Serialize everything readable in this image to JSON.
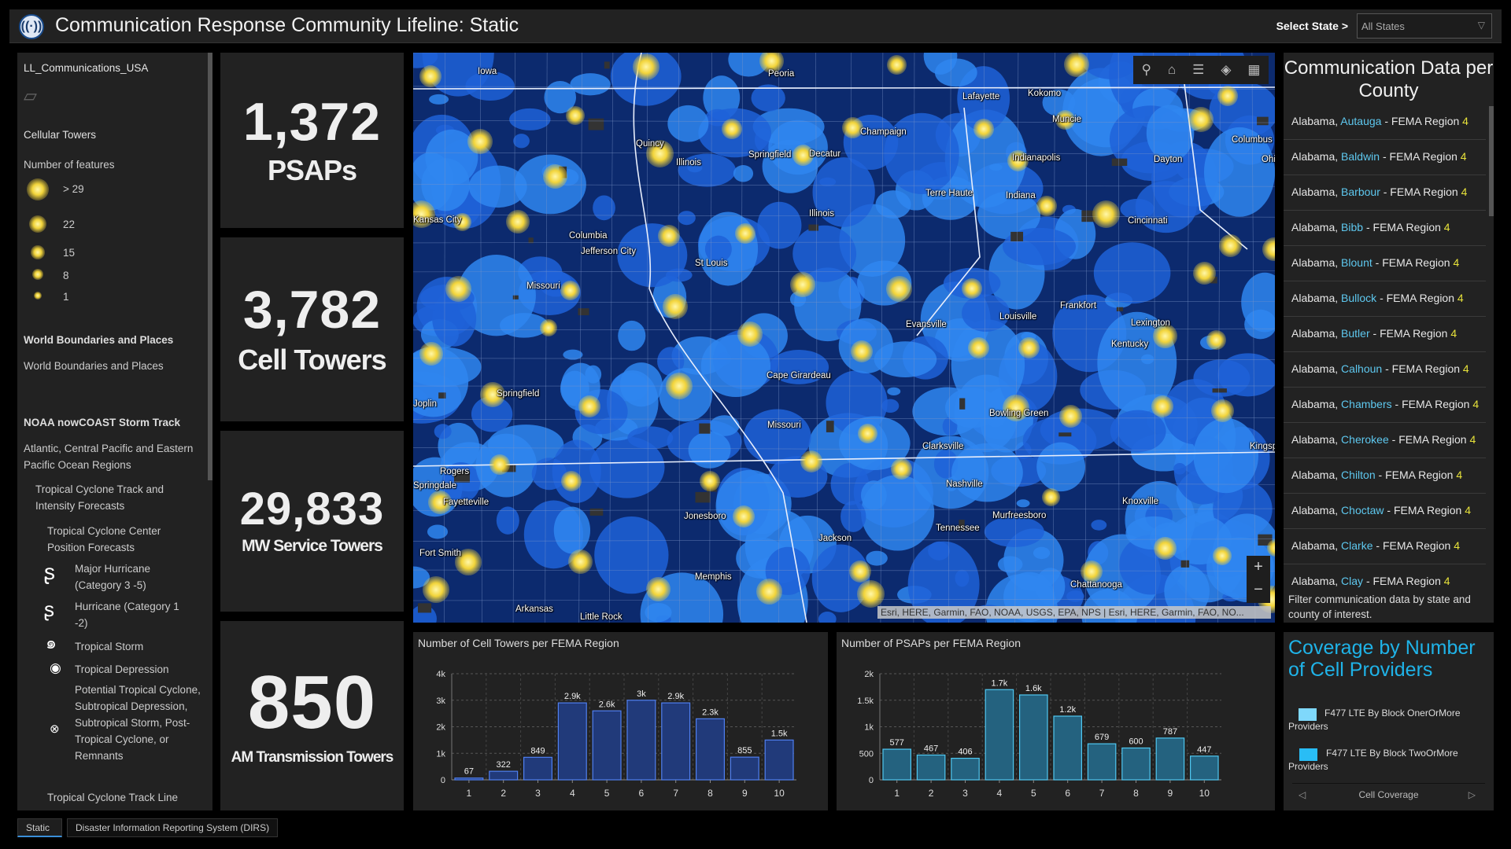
{
  "header": {
    "title": "Communication Response Community Lifeline: Static",
    "logo_icon": "radio-tower-icon",
    "select_label": "Select State >",
    "select_value": "All States"
  },
  "legend": {
    "layer": "LL_Communications_USA",
    "cell_title": "Cellular Towers",
    "cell_sub": "Number of features",
    "sizes": [
      "> 29",
      "22",
      "15",
      "8",
      "1"
    ],
    "world_title": "World Boundaries and Places",
    "world_sub": "World Boundaries and Places",
    "noaa_title": "NOAA nowCOAST Storm Track",
    "noaa_sub": "Atlantic, Central Pacific and Eastern Pacific Ocean Regions",
    "track_intensity": "Tropical Cyclone Track and Intensity Forecasts",
    "center_pos": "Tropical Cyclone Center Position Forecasts",
    "storm_items": [
      "Major Hurricane (Category 3 -5)",
      "Hurricane (Category 1 -2)",
      "Tropical Storm",
      "Tropical Depression",
      "Potential Tropical Cyclone, Subtropical Depression, Subtropical Storm, Post-Tropical Cyclone, or Remnants"
    ],
    "track_line": "Tropical Cyclone Track Line"
  },
  "kpis": [
    {
      "value": "1,372",
      "label": "PSAPs"
    },
    {
      "value": "3,782",
      "label": "Cell Towers"
    },
    {
      "value": "29,833",
      "label": "MW Service Towers"
    },
    {
      "value": "850",
      "label": "AM Transmission Towers"
    }
  ],
  "map": {
    "cities": [
      "Iowa",
      "Peoria",
      "Lafayette",
      "Kokomo",
      "Muncie",
      "Columbus",
      "Ohio",
      "Quincy",
      "Illinois",
      "Springfield",
      "Decatur",
      "Champaign",
      "Indianapolis",
      "Indiana",
      "Dayton",
      "Terre Haute",
      "Illinois",
      "Cincinnati",
      "Kansas City",
      "Columbia",
      "Jefferson City",
      "St Louis",
      "Missouri",
      "Frankfort",
      "Louisville",
      "Lexington",
      "Evansville",
      "Kentucky",
      "Springfield",
      "Cape Girardeau",
      "Joplin",
      "Missouri",
      "Bowling Green",
      "Clarksville",
      "Kingsport",
      "Rogers",
      "Springdale",
      "Fayetteville",
      "Nashville",
      "Murfreesboro",
      "Knoxville",
      "Tennessee",
      "Jonesboro",
      "Jackson",
      "Fort Smith",
      "Memphis",
      "Chattanooga",
      "Arkansas",
      "Little Rock"
    ],
    "attribution": "Esri, HERE, Garmin, FAO, NOAA, USGS, EPA, NPS | Esri, HERE, Garmin, FAO, NO...",
    "tools": [
      "search-icon",
      "home-icon",
      "legend-list-icon",
      "layers-icon",
      "basemap-gallery-icon"
    ],
    "zoom_in": "+",
    "zoom_out": "−"
  },
  "counties": {
    "title": "Communication Data per County",
    "rows": [
      {
        "state": "Alabama",
        "county": "Autauga",
        "region": "4"
      },
      {
        "state": "Alabama",
        "county": "Baldwin",
        "region": "4"
      },
      {
        "state": "Alabama",
        "county": "Barbour",
        "region": "4"
      },
      {
        "state": "Alabama",
        "county": "Bibb",
        "region": "4"
      },
      {
        "state": "Alabama",
        "county": "Blount",
        "region": "4"
      },
      {
        "state": "Alabama",
        "county": "Bullock",
        "region": "4"
      },
      {
        "state": "Alabama",
        "county": "Butler",
        "region": "4"
      },
      {
        "state": "Alabama",
        "county": "Calhoun",
        "region": "4"
      },
      {
        "state": "Alabama",
        "county": "Chambers",
        "region": "4"
      },
      {
        "state": "Alabama",
        "county": "Cherokee",
        "region": "4"
      },
      {
        "state": "Alabama",
        "county": "Chilton",
        "region": "4"
      },
      {
        "state": "Alabama",
        "county": "Choctaw",
        "region": "4"
      },
      {
        "state": "Alabama",
        "county": "Clarke",
        "region": "4"
      },
      {
        "state": "Alabama",
        "county": "Clay",
        "region": "4"
      }
    ],
    "sep": " - FEMA Region ",
    "note": "Filter communication data by state and county of interest."
  },
  "coverage": {
    "title": "Coverage by Number of Cell Providers",
    "items": [
      {
        "label": "F477 LTE By Block OnerOrMore Providers",
        "color": "#7fd8fb"
      },
      {
        "label": "F477 LTE By Block TwoOrMore Providers",
        "color": "#29bdf5"
      }
    ],
    "nav_label": "Cell Coverage"
  },
  "chart_data": [
    {
      "type": "bar",
      "title": "Number of Cell Towers per FEMA Region",
      "categories": [
        "1",
        "2",
        "3",
        "4",
        "5",
        "6",
        "7",
        "8",
        "9",
        "10"
      ],
      "values": [
        67,
        322,
        849,
        2900,
        2600,
        3000,
        2900,
        2300,
        855,
        1500
      ],
      "labels": [
        "67",
        "322",
        "849",
        "2.9k",
        "2.6k",
        "3k",
        "2.9k",
        "2.3k",
        "855",
        "1.5k"
      ],
      "ylim": [
        0,
        4000
      ],
      "yticks": [
        "0",
        "1k",
        "2k",
        "3k",
        "4k"
      ],
      "grid": true,
      "fill": "#213a7a",
      "stroke": "#4f7ff0"
    },
    {
      "type": "bar",
      "title": "Number of PSAPs per FEMA Region",
      "categories": [
        "1",
        "2",
        "3",
        "4",
        "5",
        "6",
        "7",
        "8",
        "9",
        "10"
      ],
      "values": [
        577,
        467,
        406,
        1700,
        1600,
        1200,
        679,
        600,
        787,
        447
      ],
      "labels": [
        "577",
        "467",
        "406",
        "1.7k",
        "1.6k",
        "1.2k",
        "679",
        "600",
        "787",
        "447"
      ],
      "ylim": [
        0,
        2000
      ],
      "yticks": [
        "0",
        "500",
        "1k",
        "1.5k",
        "2k"
      ],
      "grid": true,
      "fill": "#24627f",
      "stroke": "#4fc7f0"
    }
  ],
  "tabs": [
    "Static",
    "Disaster Information Reporting System (DIRS)"
  ]
}
